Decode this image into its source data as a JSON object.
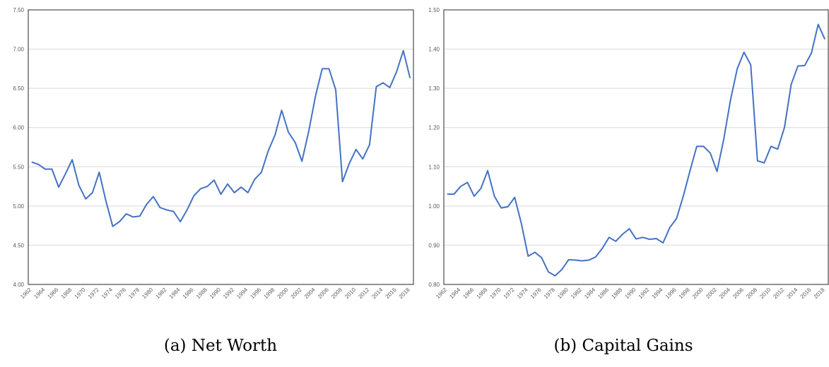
{
  "chart_data": [
    {
      "type": "line",
      "caption": "(a) Net Worth",
      "categories": [
        "1962",
        null,
        "1964",
        null,
        "1966",
        null,
        "1968",
        null,
        "1970",
        null,
        "1972",
        null,
        "1974",
        null,
        "1976",
        null,
        "1978",
        null,
        "1980",
        null,
        "1982",
        null,
        "1984",
        null,
        "1986",
        null,
        "1988",
        null,
        "1990",
        null,
        "1992",
        null,
        "1994",
        null,
        "1996",
        null,
        "1998",
        null,
        "2000",
        null,
        "2002",
        null,
        "2004",
        null,
        "2006",
        null,
        "2008",
        null,
        "2010",
        null,
        "2012",
        null,
        "2014",
        null,
        "2016",
        null,
        "2018"
      ],
      "series": [
        {
          "color": "#4472c4",
          "values": [
            5.56,
            5.53,
            5.47,
            5.47,
            5.24,
            5.41,
            5.59,
            5.26,
            5.09,
            5.17,
            5.43,
            5.06,
            4.74,
            4.8,
            4.9,
            4.86,
            4.87,
            5.02,
            5.12,
            4.98,
            4.95,
            4.93,
            4.8,
            4.95,
            5.13,
            5.22,
            5.25,
            5.33,
            5.15,
            5.28,
            5.17,
            5.24,
            5.17,
            5.34,
            5.43,
            5.7,
            5.9,
            6.22,
            5.94,
            5.81,
            5.57,
            5.95,
            6.4,
            6.75,
            6.75,
            6.48,
            5.31,
            5.54,
            5.72,
            5.6,
            5.78,
            6.52,
            6.57,
            6.51,
            6.71,
            6.98,
            6.63
          ]
        }
      ],
      "ylim": [
        4.0,
        7.5
      ],
      "yticks": [
        {
          "value": 4.0,
          "label": "4.00"
        },
        {
          "value": 4.5,
          "label": "4.50"
        },
        {
          "value": 5.0,
          "label": "5.00"
        },
        {
          "value": 5.5,
          "label": "5.50"
        },
        {
          "value": 6.0,
          "label": "6.00"
        },
        {
          "value": 6.5,
          "label": "6.50"
        },
        {
          "value": 7.0,
          "label": "7.00"
        },
        {
          "value": 7.5,
          "label": "7.50"
        }
      ],
      "grid": true
    },
    {
      "type": "line",
      "caption": "(b) Capital Gains",
      "categories": [
        "1962",
        null,
        "1964",
        null,
        "1966",
        null,
        "1968",
        null,
        "1970",
        null,
        "1972",
        null,
        "1974",
        null,
        "1976",
        null,
        "1978",
        null,
        "1980",
        null,
        "1982",
        null,
        "1984",
        null,
        "1986",
        null,
        "1988",
        null,
        "1990",
        null,
        "1992",
        null,
        "1994",
        null,
        "1996",
        null,
        "1998",
        null,
        "2000",
        null,
        "2002",
        null,
        "2004",
        null,
        "2006",
        null,
        "2008",
        null,
        "2010",
        null,
        "2012",
        null,
        "2014",
        null,
        "2016",
        null,
        "2018"
      ],
      "series": [
        {
          "color": "#4472c4",
          "values": [
            1.03,
            1.03,
            1.05,
            1.06,
            1.025,
            1.045,
            1.09,
            1.025,
            0.995,
            0.998,
            1.022,
            0.955,
            0.872,
            0.882,
            0.868,
            0.832,
            0.822,
            0.838,
            0.863,
            0.862,
            0.86,
            0.862,
            0.87,
            0.892,
            0.92,
            0.91,
            0.928,
            0.942,
            0.916,
            0.92,
            0.915,
            0.917,
            0.906,
            0.945,
            0.968,
            1.025,
            1.09,
            1.152,
            1.152,
            1.135,
            1.088,
            1.17,
            1.27,
            1.35,
            1.392,
            1.36,
            1.115,
            1.11,
            1.152,
            1.145,
            1.2,
            1.31,
            1.357,
            1.358,
            1.39,
            1.463,
            1.425
          ]
        }
      ],
      "ylim": [
        0.8,
        1.5
      ],
      "yticks": [
        {
          "value": 0.8,
          "label": "0.80"
        },
        {
          "value": 0.9,
          "label": "0.90"
        },
        {
          "value": 1.0,
          "label": "1.00"
        },
        {
          "value": 1.1,
          "label": "1.10"
        },
        {
          "value": 1.2,
          "label": "1.20"
        },
        {
          "value": 1.3,
          "label": "1.30"
        },
        {
          "value": 1.4,
          "label": "1.40"
        },
        {
          "value": 1.5,
          "label": "1.50"
        }
      ],
      "grid": true
    }
  ]
}
